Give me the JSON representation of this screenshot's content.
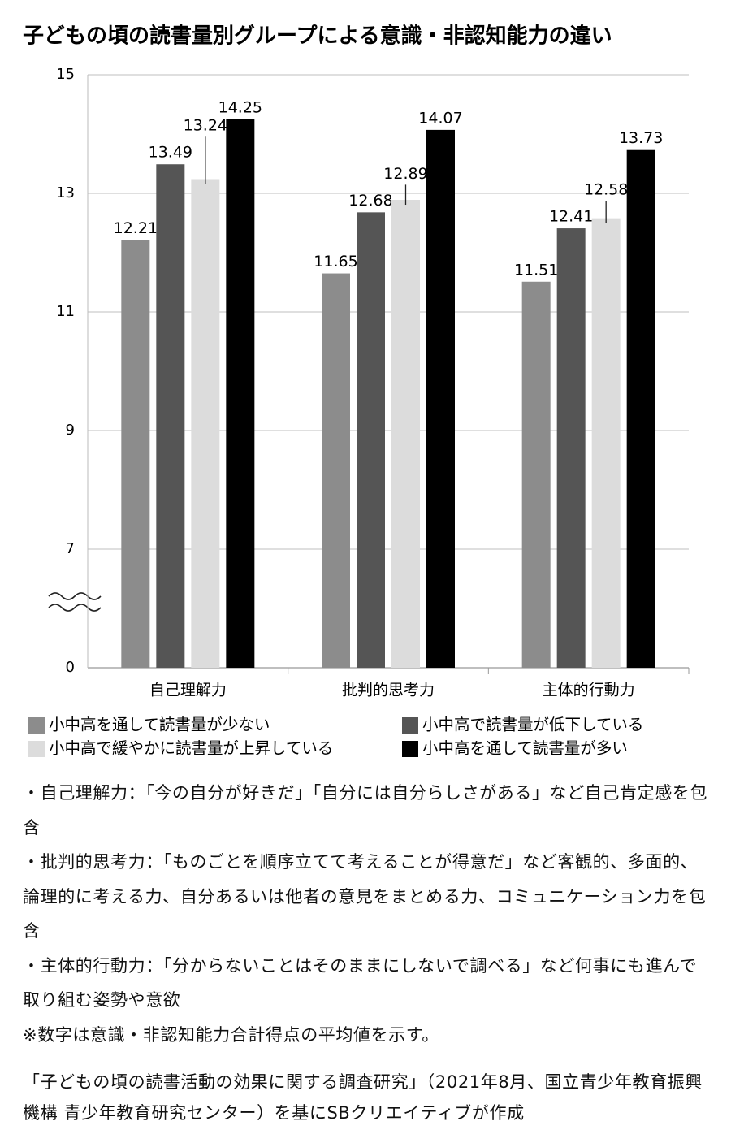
{
  "chart_data": {
    "type": "bar",
    "title": "子どもの頃の読書量別グループによる意識・非認知能力の違い",
    "categories": [
      "自己理解力",
      "批判的思考力",
      "主体的行動力"
    ],
    "series": [
      {
        "name": "小中高を通して読書量が少ない",
        "color": "#8c8c8c",
        "values": [
          12.21,
          11.65,
          11.51
        ]
      },
      {
        "name": "小中高で読書量が低下している",
        "color": "#555555",
        "values": [
          13.49,
          12.68,
          12.41
        ]
      },
      {
        "name": "小中高で緩やかに読書量が上昇している",
        "color": "#dcdcdc",
        "values": [
          13.24,
          12.89,
          12.58
        ]
      },
      {
        "name": "小中高を通して読書量が多い",
        "color": "#000000",
        "values": [
          14.25,
          14.07,
          13.73
        ]
      }
    ],
    "ylim": [
      0,
      15
    ],
    "yticks": [
      0,
      7,
      9,
      11,
      13,
      15
    ],
    "axis_break": true,
    "grid": true,
    "legend": "bottom"
  },
  "notes": [
    "・自己理解力：「今の自分が好きだ」「自分には自分らしさがある」など自己肯定感を包含",
    "・批判的思考力：「ものごとを順序立てて考えることが得意だ」など客観的、多面的、論理的に考える力、自分あるいは他者の意見をまとめる力、コミュニケーション力を包含",
    "・主体的行動力：「分からないことはそのままにしないで調べる」など何事にも進んで取り組む姿勢や意欲",
    "※数字は意識・非認知能力合計得点の平均値を示す。"
  ],
  "source": "「子どもの頃の読書活動の効果に関する調査研究」（2021年8月、国立青少年教育振興機構 青少年教育研究センター）を基にSBクリエイティブが作成"
}
